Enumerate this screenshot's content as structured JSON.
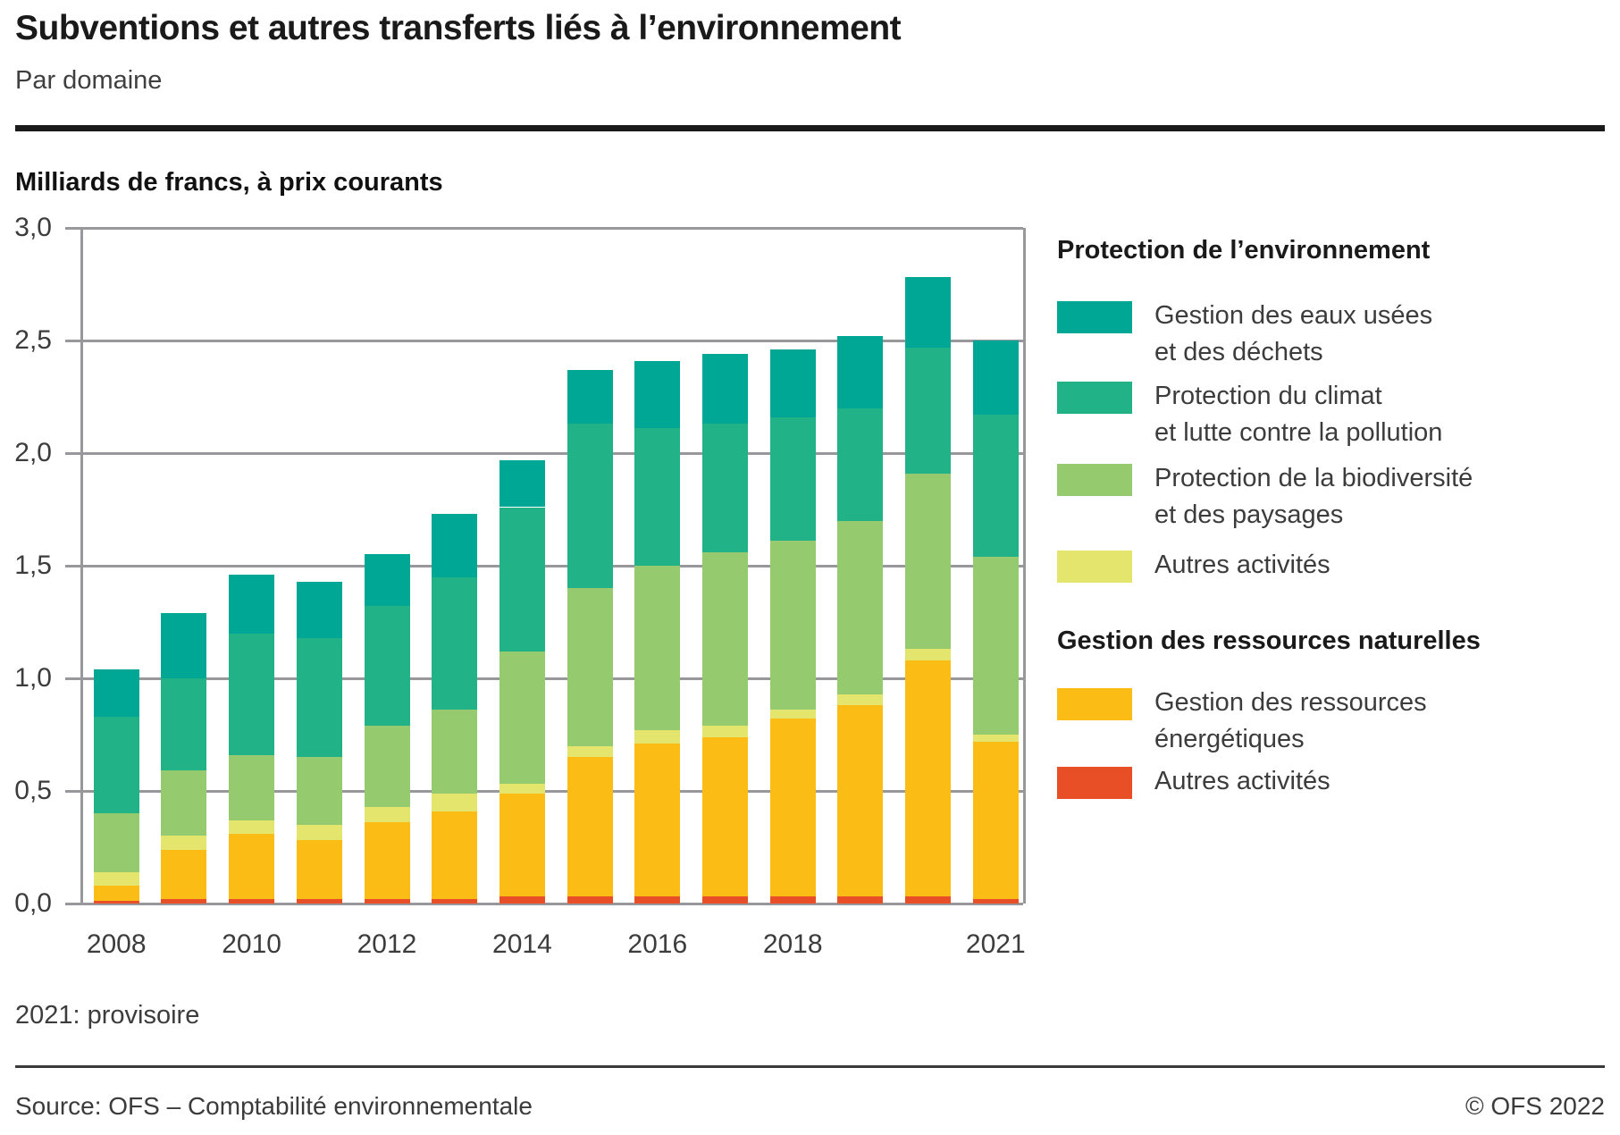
{
  "header": {
    "title": "Subventions et autres transferts liés à l’environnement",
    "subtitle": "Par domaine",
    "units_label": "Milliards de francs, à prix courants"
  },
  "footer": {
    "footnote": "2021: provisoire",
    "source": "Source: OFS – Comptabilité environnementale",
    "copyright": "© OFS 2022"
  },
  "colors": {
    "teal": "#00A794",
    "green": "#21B288",
    "light_green": "#95CA6F",
    "yellow_green": "#E4E56D",
    "orange": "#FBBC15",
    "red": "#E84F26",
    "grid": "#97979C",
    "rule": "#1A1A1A"
  },
  "legend": {
    "group1": {
      "title": "Protection de l’environnement",
      "items": [
        {
          "name": "eaux-usees-dechets",
          "color": "#00A794",
          "label": "Gestion des eaux usées\net des déchets"
        },
        {
          "name": "climat-pollution",
          "color": "#21B288",
          "label": "Protection du climat\net lutte contre la pollution"
        },
        {
          "name": "biodiversite-paysages",
          "color": "#95CA6F",
          "label": "Protection de la biodiversité\net des paysages"
        },
        {
          "name": "autres-activites-env",
          "color": "#E4E56D",
          "label": "Autres activités"
        }
      ]
    },
    "group2": {
      "title": "Gestion des ressources naturelles",
      "items": [
        {
          "name": "ressources-energetiques",
          "color": "#FBBC15",
          "label": "Gestion des ressources\nénergétiques"
        },
        {
          "name": "autres-activites-ress",
          "color": "#E84F26",
          "label": "Autres activités"
        }
      ]
    }
  },
  "chart_data": {
    "type": "bar",
    "stacked": true,
    "title": "Subventions et autres transferts liés à l’environnement, par domaine",
    "ylabel": "Milliards de francs, à prix courants",
    "ylim": [
      0,
      3
    ],
    "grid": true,
    "legend_position": "right",
    "categories": [
      2008,
      2009,
      2010,
      2011,
      2012,
      2013,
      2014,
      2015,
      2016,
      2017,
      2018,
      2019,
      2020,
      2021
    ],
    "series": [
      {
        "name": "Autres activités (gestion des ressources naturelles)",
        "color": "#E84F26",
        "values": [
          0.01,
          0.02,
          0.02,
          0.02,
          0.02,
          0.02,
          0.03,
          0.03,
          0.03,
          0.03,
          0.03,
          0.03,
          0.03,
          0.02
        ]
      },
      {
        "name": "Gestion des ressources énergétiques",
        "color": "#FBBC15",
        "values": [
          0.07,
          0.22,
          0.29,
          0.26,
          0.34,
          0.39,
          0.46,
          0.62,
          0.68,
          0.71,
          0.79,
          0.85,
          1.05,
          0.7
        ]
      },
      {
        "name": "Autres activités (protection de l’environnement)",
        "color": "#E4E56D",
        "values": [
          0.06,
          0.06,
          0.06,
          0.07,
          0.07,
          0.08,
          0.04,
          0.05,
          0.06,
          0.05,
          0.04,
          0.05,
          0.05,
          0.03
        ]
      },
      {
        "name": "Protection de la biodiversité et des paysages",
        "color": "#95CA6F",
        "values": [
          0.26,
          0.29,
          0.29,
          0.3,
          0.36,
          0.37,
          0.59,
          0.7,
          0.73,
          0.77,
          0.75,
          0.77,
          0.78,
          0.79
        ]
      },
      {
        "name": "Protection du climat et lutte contre la pollution",
        "color": "#21B288",
        "values": [
          0.43,
          0.41,
          0.54,
          0.53,
          0.53,
          0.59,
          0.64,
          0.73,
          0.61,
          0.57,
          0.55,
          0.5,
          0.56,
          0.63
        ]
      },
      {
        "name": "Gestion des eaux usées et des déchets",
        "color": "#00A794",
        "values": [
          0.21,
          0.29,
          0.26,
          0.25,
          0.23,
          0.28,
          0.21,
          0.24,
          0.3,
          0.31,
          0.3,
          0.32,
          0.31,
          0.33
        ]
      }
    ],
    "totals": [
      1.04,
      1.29,
      1.46,
      1.43,
      1.55,
      1.73,
      1.97,
      2.37,
      2.41,
      2.44,
      2.46,
      2.52,
      2.78,
      2.5
    ],
    "y_axis": {
      "ticks": [
        {
          "value": 3.0,
          "label": "3,0"
        },
        {
          "value": 2.5,
          "label": "2,5"
        },
        {
          "value": 2.0,
          "label": "2,0"
        },
        {
          "value": 1.5,
          "label": "1,5"
        },
        {
          "value": 1.0,
          "label": "1,0"
        },
        {
          "value": 0.5,
          "label": "0,5"
        },
        {
          "value": 0.0,
          "label": "0,0"
        }
      ]
    },
    "x_axis": {
      "ticks": [
        {
          "label": "2008",
          "bar": 0
        },
        {
          "label": "2010",
          "bar": 2
        },
        {
          "label": "2012",
          "bar": 4
        },
        {
          "label": "2014",
          "bar": 6
        },
        {
          "label": "2016",
          "bar": 8
        },
        {
          "label": "2018",
          "bar": 10
        },
        {
          "label": "2021",
          "bar": 13
        }
      ]
    }
  }
}
